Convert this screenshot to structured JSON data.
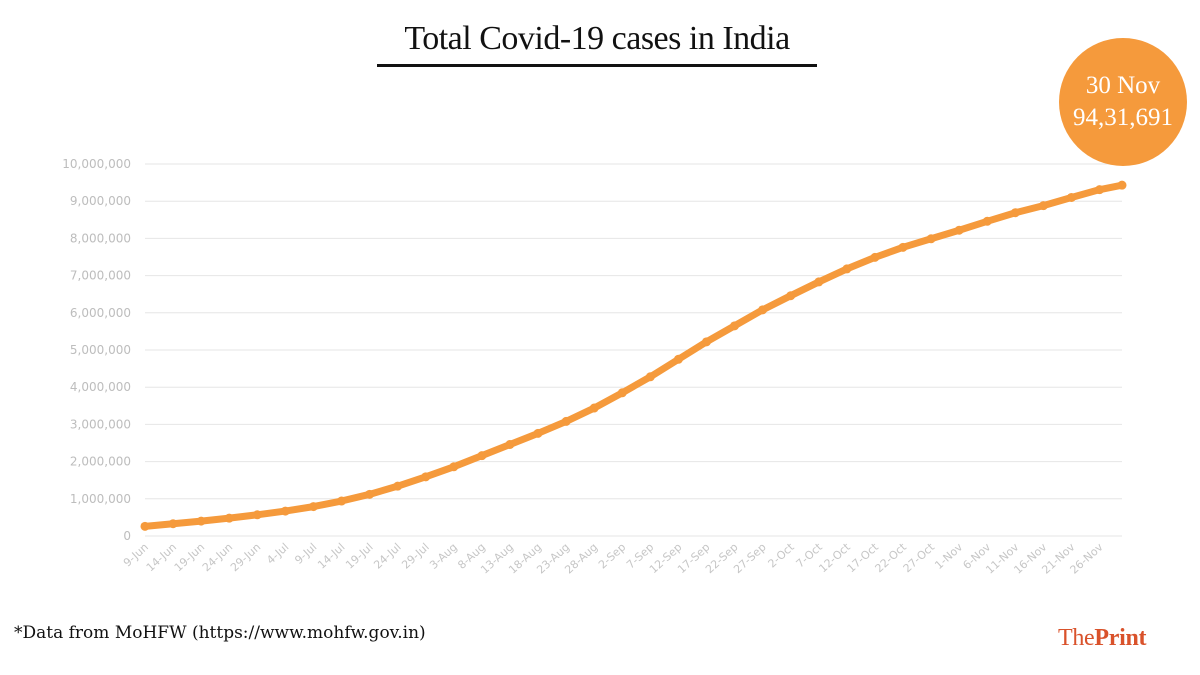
{
  "title": "Total Covid-19 cases in India",
  "callout": {
    "date": "30 Nov",
    "value": "94,31,691"
  },
  "source_note": "*Data from MoHFW (https://www.mohfw.gov.in)",
  "logo": {
    "part1": "The",
    "part2": "Print"
  },
  "colors": {
    "series": "#f59a3c",
    "grid": "#e6e6e6",
    "tick_text": "#bdbdbd",
    "logo": "#d9522b"
  },
  "chart_data": {
    "type": "line",
    "title": "Total Covid-19 cases in India",
    "xlabel": "",
    "ylabel": "",
    "ylim": [
      0,
      10000000
    ],
    "y_ticks": [
      0,
      1000000,
      2000000,
      3000000,
      4000000,
      5000000,
      6000000,
      7000000,
      8000000,
      9000000,
      10000000
    ],
    "y_tick_labels": [
      "0",
      "1,000,000",
      "2,000,000",
      "3,000,000",
      "4,000,000",
      "5,000,000",
      "6,000,000",
      "7,000,000",
      "8,000,000",
      "9,000,000",
      "10,000,000"
    ],
    "x_tick_labels": [
      "9-Jun",
      "14-Jun",
      "19-Jun",
      "24-Jun",
      "29-Jun",
      "4-Jul",
      "9-Jul",
      "14-Jul",
      "19-Jul",
      "24-Jul",
      "29-Jul",
      "3-Aug",
      "8-Aug",
      "13-Aug",
      "18-Aug",
      "23-Aug",
      "28-Aug",
      "2-Sep",
      "7-Sep",
      "12-Sep",
      "17-Sep",
      "22-Sep",
      "27-Sep",
      "2-Oct",
      "7-Oct",
      "12-Oct",
      "17-Oct",
      "22-Oct",
      "27-Oct",
      "1-Nov",
      "6-Nov",
      "11-Nov",
      "16-Nov",
      "21-Nov",
      "26-Nov"
    ],
    "grid": true,
    "marker": "circle",
    "series": [
      {
        "x": [
          "9-Jun",
          "14-Jun",
          "19-Jun",
          "24-Jun",
          "29-Jun",
          "4-Jul",
          "9-Jul",
          "14-Jul",
          "19-Jul",
          "24-Jul",
          "29-Jul",
          "3-Aug",
          "8-Aug",
          "13-Aug",
          "18-Aug",
          "23-Aug",
          "28-Aug",
          "2-Sep",
          "7-Sep",
          "12-Sep",
          "17-Sep",
          "22-Sep",
          "27-Sep",
          "2-Oct",
          "7-Oct",
          "12-Oct",
          "17-Oct",
          "22-Oct",
          "27-Oct",
          "1-Nov",
          "6-Nov",
          "11-Nov",
          "16-Nov",
          "21-Nov",
          "26-Nov",
          "30-Nov"
        ],
        "values": [
          260000,
          330000,
          400000,
          480000,
          570000,
          670000,
          790000,
          940000,
          1120000,
          1340000,
          1590000,
          1860000,
          2160000,
          2460000,
          2760000,
          3080000,
          3440000,
          3850000,
          4280000,
          4750000,
          5220000,
          5650000,
          6080000,
          6460000,
          6830000,
          7180000,
          7490000,
          7760000,
          7990000,
          8220000,
          8460000,
          8690000,
          8880000,
          9100000,
          9310000,
          9431691
        ]
      }
    ]
  }
}
